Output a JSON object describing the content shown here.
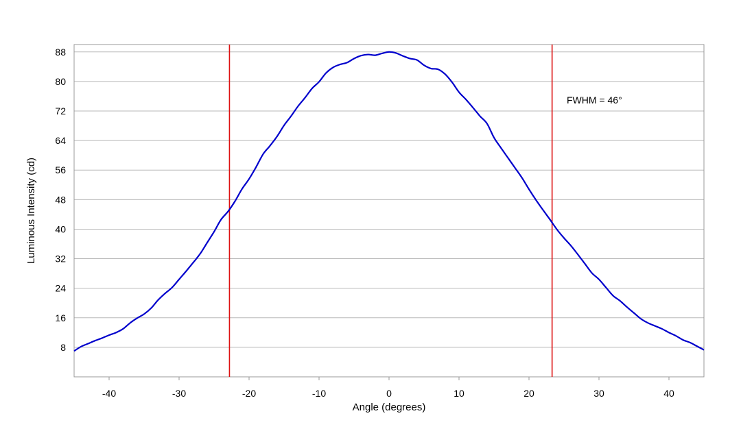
{
  "chart_data": {
    "type": "line",
    "title": "",
    "xlabel": "Angle (degrees)",
    "ylabel": "Luminous Intensity (cd)",
    "xlim": [
      -45,
      45
    ],
    "ylim": [
      0,
      90
    ],
    "x_ticks": [
      -40,
      -30,
      -20,
      -10,
      0,
      10,
      20,
      30,
      40
    ],
    "x_tick_labels": [
      "-40",
      "-30",
      "-20",
      "-10",
      "0",
      "10",
      "20",
      "30",
      "40"
    ],
    "y_ticks": [
      8,
      16,
      24,
      32,
      40,
      48,
      56,
      64,
      72,
      80,
      88
    ],
    "y_tick_labels": [
      "8",
      "16",
      "24",
      "32",
      "40",
      "48",
      "56",
      "64",
      "72",
      "80",
      "88"
    ],
    "grid": "horizontal",
    "legend": "none",
    "series": [
      {
        "color": "#0000cc",
        "x": [
          -45,
          -44,
          -43,
          -42,
          -41,
          -40,
          -39,
          -38,
          -37,
          -36,
          -35,
          -34,
          -33,
          -32,
          -31,
          -30,
          -29,
          -28,
          -27,
          -26,
          -25,
          -24,
          -23,
          -22,
          -21,
          -20,
          -19,
          -18,
          -17,
          -16,
          -15,
          -14,
          -13,
          -12,
          -11,
          -10,
          -9,
          -8,
          -7,
          -6,
          -5,
          -4,
          -3,
          -2,
          -1,
          0,
          1,
          2,
          3,
          4,
          5,
          6,
          7,
          8,
          9,
          10,
          11,
          12,
          13,
          14,
          15,
          16,
          17,
          18,
          19,
          20,
          21,
          22,
          23,
          24,
          25,
          26,
          27,
          28,
          29,
          30,
          31,
          32,
          33,
          34,
          35,
          36,
          37,
          38,
          39,
          40,
          41,
          42,
          43,
          44,
          45
        ],
        "y": [
          7.0,
          8.2,
          9.0,
          9.8,
          10.5,
          11.3,
          12.0,
          13.0,
          14.6,
          15.9,
          17.0,
          18.6,
          20.8,
          22.6,
          24.2,
          26.4,
          28.6,
          30.9,
          33.3,
          36.3,
          39.3,
          42.6,
          44.8,
          47.6,
          50.9,
          53.6,
          56.8,
          60.3,
          62.6,
          65.1,
          68.1,
          70.6,
          73.3,
          75.6,
          78.1,
          79.9,
          82.3,
          83.8,
          84.6,
          85.1,
          86.2,
          87.0,
          87.3,
          87.1,
          87.6,
          88.0,
          87.7,
          86.9,
          86.2,
          85.8,
          84.4,
          83.5,
          83.3,
          82.0,
          79.8,
          77.1,
          75.1,
          72.9,
          70.6,
          68.6,
          64.8,
          62.0,
          59.3,
          56.6,
          53.9,
          50.8,
          47.9,
          45.2,
          42.6,
          39.9,
          37.6,
          35.5,
          33.1,
          30.6,
          28.1,
          26.4,
          24.2,
          22.0,
          20.6,
          18.9,
          17.3,
          15.7,
          14.6,
          13.8,
          13.0,
          12.0,
          11.1,
          10.0,
          9.3,
          8.3,
          7.3
        ]
      }
    ],
    "vertical_lines": [
      {
        "x": -22.8,
        "color": "#dd1111"
      },
      {
        "x": 23.3,
        "color": "#dd1111"
      }
    ],
    "annotations": [
      {
        "text": "FWHM = 46°",
        "x": 25,
        "y": 75
      }
    ]
  }
}
